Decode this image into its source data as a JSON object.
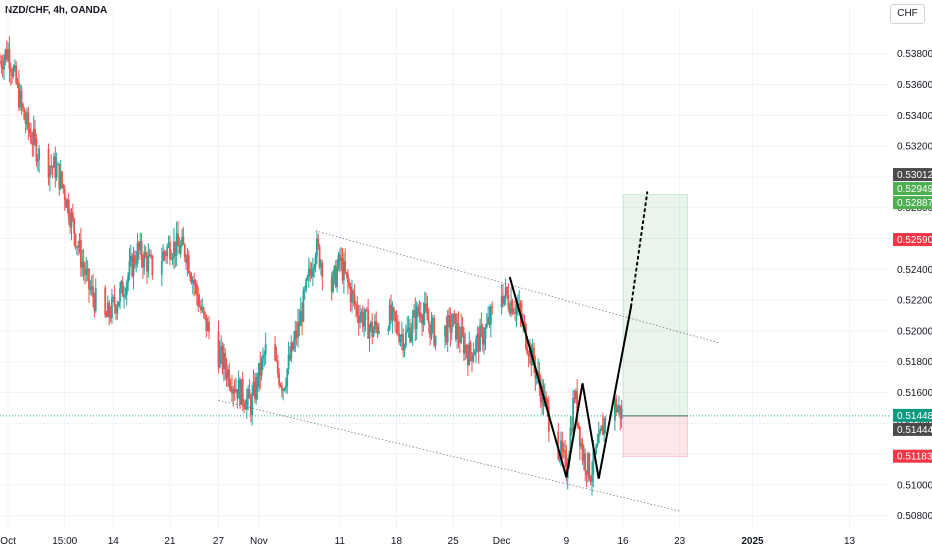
{
  "header": {
    "title": "NZD/CHF, 4h, OANDA",
    "currency": "CHF"
  },
  "chart_data": {
    "type": "candlestick",
    "y_ticks": [
      0.538,
      0.536,
      0.534,
      0.532,
      0.53,
      0.528,
      0.526,
      0.524,
      0.522,
      0.52,
      0.518,
      0.516,
      0.514,
      0.512,
      0.51,
      0.508
    ],
    "ylim": [
      0.5072,
      0.5398
    ],
    "x_ticks": [
      {
        "label": "Oct",
        "date": "2024-10-01",
        "bold": false
      },
      {
        "label": "15:00",
        "date": "2024-10-08",
        "bold": false
      },
      {
        "label": "14",
        "date": "2024-10-14",
        "bold": false
      },
      {
        "label": "21",
        "date": "2024-10-21",
        "bold": false
      },
      {
        "label": "27",
        "date": "2024-10-27",
        "bold": false
      },
      {
        "label": "Nov",
        "date": "2024-11-01",
        "bold": false
      },
      {
        "label": "11",
        "date": "2024-11-11",
        "bold": false
      },
      {
        "label": "18",
        "date": "2024-11-18",
        "bold": false
      },
      {
        "label": "25",
        "date": "2024-11-25",
        "bold": false
      },
      {
        "label": "Dec",
        "date": "2024-12-01",
        "bold": false
      },
      {
        "label": "9",
        "date": "2024-12-09",
        "bold": false
      },
      {
        "label": "16",
        "date": "2024-12-16",
        "bold": false
      },
      {
        "label": "23",
        "date": "2024-12-23",
        "bold": false
      },
      {
        "label": "2025",
        "date": "2025-01-01",
        "bold": true
      },
      {
        "label": "13",
        "date": "2025-01-13",
        "bold": false
      }
    ],
    "x_start": "2024-09-30",
    "x_end": "2025-01-18",
    "candles_start": "2024-09-30",
    "candles_end": "2024-12-16",
    "close_path": [
      [
        "2024-09-30",
        0.5375
      ],
      [
        "2024-10-01",
        0.5382
      ],
      [
        "2024-10-03",
        0.5338
      ],
      [
        "2024-10-05",
        0.5312
      ],
      [
        "2024-10-07",
        0.5305
      ],
      [
        "2024-10-08",
        0.529
      ],
      [
        "2024-10-10",
        0.5248
      ],
      [
        "2024-10-11",
        0.5228
      ],
      [
        "2024-10-13",
        0.5207
      ],
      [
        "2024-10-15",
        0.5225
      ],
      [
        "2024-10-17",
        0.5252
      ],
      [
        "2024-10-19",
        0.524
      ],
      [
        "2024-10-21",
        0.5256
      ],
      [
        "2024-10-23",
        0.5252
      ],
      [
        "2024-10-25",
        0.521
      ],
      [
        "2024-10-27",
        0.5185
      ],
      [
        "2024-10-29",
        0.5165
      ],
      [
        "2024-10-31",
        0.5152
      ],
      [
        "2024-11-02",
        0.519
      ],
      [
        "2024-11-04",
        0.5165
      ],
      [
        "2024-11-06",
        0.5205
      ],
      [
        "2024-11-08",
        0.5255
      ],
      [
        "2024-11-10",
        0.5228
      ],
      [
        "2024-11-11",
        0.5245
      ],
      [
        "2024-11-13",
        0.5215
      ],
      [
        "2024-11-15",
        0.52
      ],
      [
        "2024-11-17",
        0.521
      ],
      [
        "2024-11-19",
        0.5195
      ],
      [
        "2024-11-21",
        0.5215
      ],
      [
        "2024-11-23",
        0.5195
      ],
      [
        "2024-11-25",
        0.5205
      ],
      [
        "2024-11-27",
        0.5185
      ],
      [
        "2024-11-29",
        0.52
      ],
      [
        "2024-12-01",
        0.5225
      ],
      [
        "2024-12-03",
        0.5215
      ],
      [
        "2024-12-05",
        0.5178
      ],
      [
        "2024-12-07",
        0.514
      ],
      [
        "2024-12-09",
        0.511
      ],
      [
        "2024-12-10",
        0.516
      ],
      [
        "2024-12-11",
        0.512
      ],
      [
        "2024-12-12",
        0.5108
      ],
      [
        "2024-12-13",
        0.5125
      ],
      [
        "2024-12-14",
        0.515
      ],
      [
        "2024-12-15",
        0.5152
      ],
      [
        "2024-12-16",
        0.5145
      ]
    ],
    "channel_lines": [
      {
        "from": [
          "2024-11-08",
          0.5265
        ],
        "to": [
          "2024-12-28",
          0.5192
        ],
        "style": "dotted"
      },
      {
        "from": [
          "2024-10-27",
          0.5155
        ],
        "to": [
          "2024-12-23",
          0.5083
        ],
        "style": "dotted"
      }
    ],
    "pattern_lines": [
      {
        "points": [
          [
            "2024-12-02",
            0.5235
          ],
          [
            "2024-12-09",
            0.5105
          ],
          [
            "2024-12-11",
            0.5166
          ],
          [
            "2024-12-13",
            0.5104
          ],
          [
            "2024-12-17",
            0.5216
          ]
        ],
        "style": "solid"
      },
      {
        "points": [
          [
            "2024-12-17",
            0.5216
          ],
          [
            "2024-12-19",
            0.529
          ]
        ],
        "style": "dotted"
      }
    ],
    "position": {
      "start": "2024-12-16",
      "end": "2024-12-24",
      "entry": 0.51448,
      "target": 0.52887,
      "stop": 0.51183
    },
    "price_labels": [
      {
        "text": "0.53012",
        "value": 0.53012,
        "color": "#4a4a4a"
      },
      {
        "text": "0.52949",
        "value": 0.52949,
        "color": "#4caf50"
      },
      {
        "text": "0.52887",
        "value": 0.52887,
        "color": "#4caf50"
      },
      {
        "text": "0.52590",
        "value": 0.5259,
        "color": "#f23645"
      },
      {
        "text": "0.51448",
        "value": 0.51448,
        "color": "#089981"
      },
      {
        "text": "0.51444",
        "value": 0.51444,
        "color": "#4a4a4a"
      },
      {
        "text": "0.51183",
        "value": 0.51183,
        "color": "#f23645"
      }
    ],
    "colors": {
      "up": "#26a69a",
      "down": "#ef5350",
      "grid": "#f0f3fa"
    }
  }
}
